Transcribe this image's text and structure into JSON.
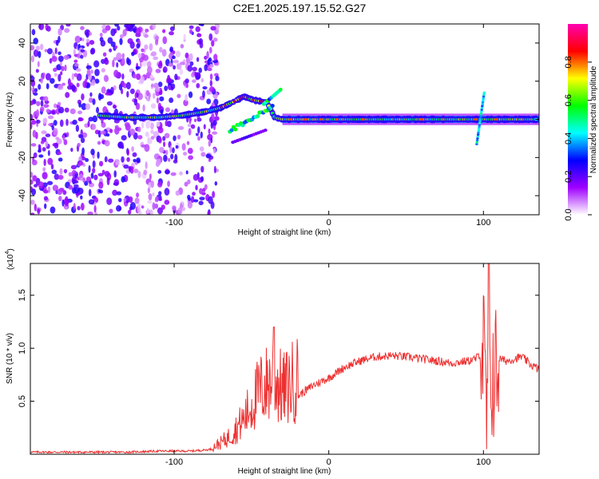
{
  "title": "C2E1.2025.197.15.52.G27",
  "chart_data": [
    {
      "type": "heatmap",
      "xlabel": "Height of straight line (km)",
      "ylabel": "Frequency (Hz)",
      "xlim": [
        -193,
        136
      ],
      "ylim": [
        -50,
        50
      ],
      "xticks": [
        -100,
        0,
        100
      ],
      "yticks": [
        -40,
        -20,
        0,
        20,
        40
      ],
      "colorbar": {
        "label": "Normalized spectral amplitude",
        "range": [
          0,
          1
        ],
        "ticks": [
          0.0,
          0.2,
          0.4,
          0.6,
          0.8
        ],
        "tick_labels": [
          "0.0",
          "0.2",
          "0.4",
          "0.6",
          "0.8"
        ],
        "colormap": [
          "#ffffff",
          "#9f00ff",
          "#0000ff",
          "#00ffff",
          "#00ff00",
          "#ffff00",
          "#ff0000",
          "#ff00b0"
        ]
      },
      "ridge": {
        "x": [
          -148,
          -130,
          -110,
          -95,
          -80,
          -70,
          -62,
          -55,
          -48,
          -40,
          -35,
          -30,
          -20,
          0,
          30,
          60,
          90,
          100,
          110,
          136
        ],
        "y": [
          2,
          1,
          1,
          2,
          4,
          6,
          9,
          12,
          10,
          9,
          1,
          0,
          0,
          0,
          0,
          0,
          0,
          0,
          0,
          0
        ]
      }
    },
    {
      "type": "line",
      "xlabel": "Height of straight line (km)",
      "ylabel": "SNR (10 * v/v)",
      "y_multiplier": "(x10",
      "y_multiplier_exp": "4",
      "y_multiplier_close": ")",
      "xlim": [
        -193,
        136
      ],
      "ylim": [
        0,
        1.8
      ],
      "xticks": [
        -100,
        0,
        100
      ],
      "yticks": [
        0.5,
        1.0,
        1.5
      ],
      "ytick_labels": [
        "0.5",
        "1.0",
        "1.5"
      ],
      "color": "#ee3030",
      "series": [
        {
          "x": [
            -193,
            -170,
            -150,
            -130,
            -110,
            -90,
            -80,
            -75,
            -70,
            -65,
            -60,
            -55,
            -50,
            -45,
            -40,
            -35,
            -30,
            -25,
            -20,
            -10,
            0,
            10,
            20,
            30,
            40,
            50,
            60,
            70,
            80,
            90,
            95,
            98,
            100,
            102,
            104,
            106,
            108,
            110,
            115,
            120,
            125,
            130,
            136
          ],
          "y": [
            0.02,
            0.02,
            0.02,
            0.02,
            0.03,
            0.03,
            0.04,
            0.05,
            0.08,
            0.12,
            0.18,
            0.25,
            0.35,
            0.45,
            0.5,
            0.55,
            0.45,
            0.5,
            0.55,
            0.65,
            0.72,
            0.82,
            0.88,
            0.92,
            0.93,
            0.92,
            0.9,
            0.88,
            0.86,
            0.88,
            0.9,
            0.95,
            1.0,
            0.3,
            0.6,
            0.8,
            0.75,
            0.9,
            0.88,
            0.9,
            0.92,
            0.85,
            0.8
          ]
        }
      ]
    }
  ]
}
